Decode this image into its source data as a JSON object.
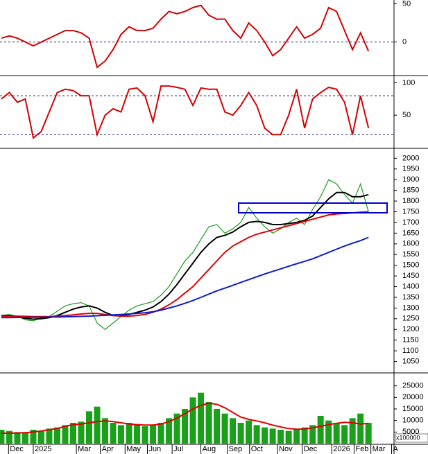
{
  "chart_data": [
    {
      "type": "line",
      "ylim": [
        -43,
        55
      ],
      "yticks": [
        50,
        0
      ],
      "ref_lines": [
        0
      ],
      "xlim": [
        -0.17,
        49.2
      ],
      "x": [
        0,
        1,
        2,
        3,
        4,
        5,
        6,
        7,
        8,
        9,
        10,
        11,
        12,
        13,
        14,
        15,
        16,
        17,
        18,
        19,
        20,
        21,
        22,
        23,
        24,
        25,
        26,
        27,
        28,
        29,
        30,
        31,
        32,
        33,
        34,
        35,
        36,
        37,
        38,
        39,
        40,
        41,
        42,
        43,
        44,
        45,
        46
      ],
      "series": [
        {
          "color": "#d40000",
          "values": [
            5,
            8,
            5,
            0,
            -5,
            0,
            5,
            10,
            15,
            15,
            12,
            5,
            -33,
            -25,
            -10,
            10,
            20,
            15,
            15,
            18,
            30,
            40,
            37,
            40,
            45,
            48,
            35,
            30,
            30,
            15,
            5,
            25,
            15,
            0,
            -18,
            -10,
            5,
            20,
            5,
            10,
            18,
            45,
            40,
            15,
            -10,
            12,
            -12
          ]
        }
      ]
    },
    {
      "type": "line",
      "ylim": [
        0,
        109
      ],
      "yticks": [
        100,
        50
      ],
      "ref_lines": [
        80,
        20
      ],
      "xlim": [
        -0.17,
        49.2
      ],
      "x": [
        0,
        1,
        2,
        3,
        4,
        5,
        6,
        7,
        8,
        9,
        10,
        11,
        12,
        13,
        14,
        15,
        16,
        17,
        18,
        19,
        20,
        21,
        22,
        23,
        24,
        25,
        26,
        27,
        28,
        29,
        30,
        31,
        32,
        33,
        34,
        35,
        36,
        37,
        38,
        39,
        40,
        41,
        42,
        43,
        44,
        45,
        46
      ],
      "series": [
        {
          "color": "#d40000",
          "values": [
            75,
            85,
            70,
            75,
            15,
            25,
            55,
            85,
            90,
            88,
            80,
            80,
            20,
            50,
            60,
            55,
            90,
            92,
            80,
            40,
            95,
            95,
            93,
            90,
            65,
            92,
            90,
            90,
            55,
            50,
            65,
            85,
            65,
            30,
            20,
            20,
            50,
            90,
            30,
            75,
            85,
            93,
            90,
            70,
            20,
            80,
            30
          ]
        }
      ]
    },
    {
      "type": "line",
      "ylim": [
        1000,
        2040
      ],
      "yticks": [
        1050,
        1100,
        1150,
        1200,
        1250,
        1300,
        1350,
        1400,
        1450,
        1500,
        1550,
        1600,
        1650,
        1700,
        1750,
        1800,
        1850,
        1900,
        1950,
        2000
      ],
      "xlim": [
        -0.17,
        49.2
      ],
      "x": [
        0,
        1,
        2,
        3,
        4,
        5,
        6,
        7,
        8,
        9,
        10,
        11,
        12,
        13,
        14,
        15,
        16,
        17,
        18,
        19,
        20,
        21,
        22,
        23,
        24,
        25,
        26,
        27,
        28,
        29,
        30,
        31,
        32,
        33,
        34,
        35,
        36,
        37,
        38,
        39,
        40,
        41,
        42,
        43,
        44,
        45,
        46
      ],
      "series": [
        {
          "color": "#1a9a1a",
          "values": [
            1265,
            1270,
            1262,
            1245,
            1240,
            1255,
            1260,
            1285,
            1310,
            1320,
            1325,
            1310,
            1230,
            1200,
            1230,
            1260,
            1290,
            1310,
            1320,
            1330,
            1360,
            1400,
            1460,
            1520,
            1560,
            1620,
            1680,
            1690,
            1650,
            1670,
            1700,
            1770,
            1720,
            1680,
            1650,
            1670,
            1700,
            1720,
            1690,
            1760,
            1820,
            1900,
            1880,
            1830,
            1790,
            1880,
            1750
          ]
        },
        {
          "color": "#000000",
          "values": [
            1265,
            1265,
            1260,
            1252,
            1248,
            1250,
            1255,
            1265,
            1280,
            1295,
            1305,
            1310,
            1300,
            1280,
            1265,
            1265,
            1270,
            1280,
            1290,
            1305,
            1330,
            1365,
            1410,
            1460,
            1510,
            1560,
            1600,
            1630,
            1640,
            1655,
            1680,
            1700,
            1705,
            1700,
            1690,
            1690,
            1695,
            1700,
            1710,
            1730,
            1770,
            1810,
            1840,
            1840,
            1820,
            1820,
            1830
          ]
        },
        {
          "color": "#e00000",
          "values": [
            1262,
            1262,
            1262,
            1261,
            1260,
            1260,
            1260,
            1262,
            1265,
            1268,
            1272,
            1275,
            1275,
            1270,
            1265,
            1262,
            1262,
            1265,
            1270,
            1280,
            1295,
            1315,
            1340,
            1370,
            1400,
            1440,
            1480,
            1520,
            1560,
            1590,
            1610,
            1630,
            1645,
            1655,
            1665,
            1675,
            1685,
            1695,
            1705,
            1715,
            1725,
            1735,
            1740,
            1742,
            1745,
            1748,
            1750
          ]
        },
        {
          "color": "#0a1ccc",
          "values": [
            1255,
            1255,
            1256,
            1256,
            1257,
            1257,
            1258,
            1258,
            1259,
            1260,
            1261,
            1262,
            1264,
            1266,
            1268,
            1270,
            1272,
            1275,
            1278,
            1283,
            1290,
            1300,
            1310,
            1322,
            1335,
            1350,
            1365,
            1380,
            1393,
            1406,
            1420,
            1433,
            1446,
            1459,
            1471,
            1483,
            1495,
            1507,
            1518,
            1530,
            1545,
            1560,
            1575,
            1590,
            1603,
            1615,
            1630
          ]
        }
      ]
    },
    {
      "type": "bar",
      "ylim": [
        0,
        30000
      ],
      "yticks": [
        5000,
        10000,
        15000,
        20000,
        25000
      ],
      "unit_label": "x100000",
      "xlim": [
        -0.17,
        49.2
      ],
      "x": [
        0,
        1,
        2,
        3,
        4,
        5,
        6,
        7,
        8,
        9,
        10,
        11,
        12,
        13,
        14,
        15,
        16,
        17,
        18,
        19,
        20,
        21,
        22,
        23,
        24,
        25,
        26,
        27,
        28,
        29,
        30,
        31,
        32,
        33,
        34,
        35,
        36,
        37,
        38,
        39,
        40,
        41,
        42,
        43,
        44,
        45,
        46
      ],
      "xticks": [
        {
          "value": 0.9,
          "label": "Dec"
        },
        {
          "value": 4,
          "label": "2025"
        },
        {
          "value": 9.4,
          "label": "Mar"
        },
        {
          "value": 12.4,
          "label": "Apr"
        },
        {
          "value": 15.5,
          "label": "May"
        },
        {
          "value": 18.3,
          "label": "Jun"
        },
        {
          "value": 21.4,
          "label": "Jul"
        },
        {
          "value": 25,
          "label": "Aug"
        },
        {
          "value": 28.3,
          "label": "Sep"
        },
        {
          "value": 31.1,
          "label": "Oct"
        },
        {
          "value": 34.6,
          "label": "Nov"
        },
        {
          "value": 37.7,
          "label": "Dec"
        },
        {
          "value": 41.4,
          "label": "2026"
        },
        {
          "value": 44.2,
          "label": "Feb"
        },
        {
          "value": 46.3,
          "label": "Mar"
        },
        {
          "value": 48.9,
          "label": "A"
        }
      ],
      "series": [
        {
          "type": "bar",
          "color": "#1aa01a",
          "values": [
            6000,
            5500,
            5000,
            5000,
            6000,
            5500,
            6500,
            7000,
            8000,
            9000,
            9500,
            14000,
            16000,
            11000,
            9000,
            8000,
            9000,
            8500,
            7500,
            8000,
            9000,
            11000,
            13000,
            15000,
            20000,
            22000,
            18000,
            15000,
            13000,
            11000,
            9000,
            10000,
            8000,
            7000,
            6500,
            6000,
            5500,
            6500,
            7000,
            8000,
            12000,
            10000,
            9000,
            8000,
            11000,
            13000,
            9000
          ]
        },
        {
          "type": "line",
          "color": "#e00000",
          "values": [
            4500,
            4500,
            4600,
            4700,
            5000,
            5500,
            6000,
            6500,
            7500,
            8200,
            8500,
            9000,
            9500,
            9800,
            9500,
            9000,
            8500,
            8200,
            8000,
            8000,
            8500,
            9500,
            11000,
            13000,
            15000,
            16500,
            17500,
            17000,
            15500,
            13500,
            11500,
            10500,
            9800,
            9000,
            8000,
            7200,
            6500,
            6200,
            6300,
            6800,
            7500,
            8200,
            8800,
            9200,
            9000,
            8500,
            8800
          ]
        }
      ]
    }
  ]
}
